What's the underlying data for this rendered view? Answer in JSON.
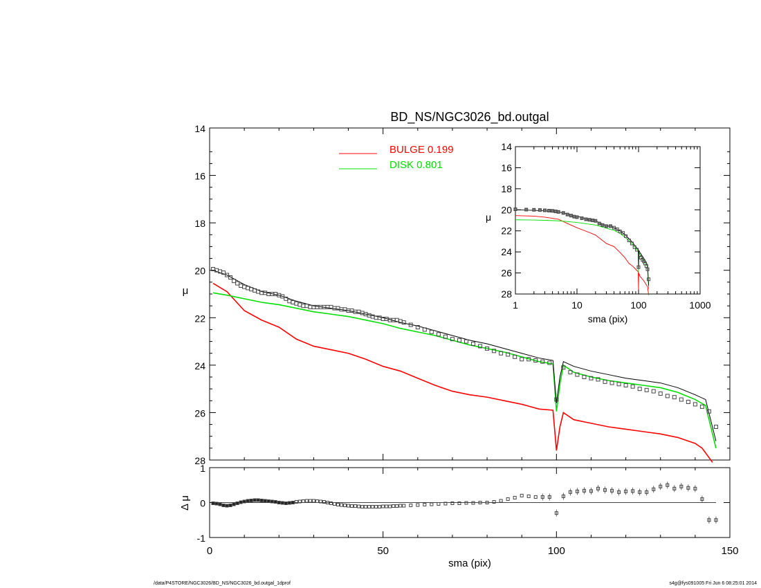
{
  "footer": {
    "left": "/data/P4STORE/NGC3026/BD_NS/NGC3026_bd.outgal_1dprof",
    "right": "s4g@fys091005  Fri Jun  6 08:25:01 2014"
  },
  "colors": {
    "bulge": "#ff0000",
    "disk": "#00e000",
    "total": "#000000",
    "data": "#555555"
  },
  "chart_data": [
    {
      "type": "line",
      "title": "BD_NS/NGC3026_bd.outgal",
      "xlabel": "",
      "ylabel": "μ",
      "xlim": [
        0,
        150
      ],
      "ylim": [
        28,
        14
      ],
      "yticks": [
        14,
        16,
        18,
        20,
        22,
        24,
        26,
        28
      ],
      "legend": [
        {
          "label": "BULGE  0.199",
          "color": "#ff0000"
        },
        {
          "label": "DISK  0.801",
          "color": "#00e000"
        }
      ],
      "legend_position": "top-center",
      "series": [
        {
          "name": "BULGE",
          "color": "#ff0000",
          "x": [
            1,
            5,
            10,
            15,
            20,
            25,
            30,
            35,
            40,
            45,
            50,
            55,
            60,
            65,
            70,
            75,
            80,
            85,
            90,
            95,
            99,
            100,
            101,
            102,
            105,
            110,
            115,
            120,
            125,
            130,
            135,
            140,
            142,
            145
          ],
          "y": [
            20.55,
            20.9,
            21.7,
            22.1,
            22.4,
            22.9,
            23.2,
            23.35,
            23.5,
            23.75,
            24.05,
            24.25,
            24.55,
            24.85,
            25.1,
            25.25,
            25.35,
            25.5,
            25.65,
            25.85,
            25.9,
            27.6,
            26.6,
            26.0,
            26.3,
            26.45,
            26.6,
            26.7,
            26.8,
            26.9,
            27.05,
            27.3,
            27.5,
            28.1
          ]
        },
        {
          "name": "DISK",
          "color": "#00e000",
          "x": [
            1,
            5,
            10,
            15,
            20,
            25,
            30,
            35,
            40,
            45,
            50,
            55,
            60,
            65,
            70,
            75,
            80,
            85,
            90,
            95,
            99,
            100,
            101,
            102,
            105,
            110,
            115,
            120,
            125,
            130,
            135,
            140,
            143,
            146
          ],
          "y": [
            20.95,
            21.05,
            21.2,
            21.35,
            21.45,
            21.6,
            21.75,
            21.85,
            21.95,
            22.1,
            22.25,
            22.45,
            22.6,
            22.75,
            22.95,
            23.15,
            23.3,
            23.45,
            23.65,
            23.85,
            23.95,
            25.95,
            24.8,
            24.0,
            24.3,
            24.5,
            24.65,
            24.75,
            24.85,
            24.95,
            25.15,
            25.45,
            25.7,
            27.5
          ]
        },
        {
          "name": "",
          "color": "#000000",
          "x": [
            1,
            5,
            10,
            15,
            20,
            25,
            30,
            35,
            40,
            45,
            50,
            55,
            60,
            65,
            70,
            75,
            80,
            85,
            90,
            95,
            99,
            100,
            101,
            102,
            105,
            110,
            115,
            120,
            125,
            130,
            135,
            140,
            143,
            146
          ],
          "y": [
            20.0,
            20.2,
            20.6,
            20.9,
            21.05,
            21.3,
            21.5,
            21.6,
            21.7,
            21.85,
            22.0,
            22.2,
            22.35,
            22.55,
            22.75,
            22.95,
            23.1,
            23.3,
            23.5,
            23.7,
            23.8,
            25.6,
            24.5,
            23.85,
            24.05,
            24.25,
            24.4,
            24.55,
            24.65,
            24.75,
            24.95,
            25.25,
            25.45,
            27.2
          ]
        }
      ],
      "data_points": {
        "x": [
          1,
          2,
          3,
          4,
          5,
          6,
          7,
          8,
          9,
          10,
          11,
          12,
          13,
          14,
          15,
          16,
          17,
          18,
          19,
          20,
          21,
          22,
          23,
          24,
          25,
          26,
          27,
          28,
          29,
          30,
          31,
          32,
          33,
          34,
          35,
          36,
          37,
          38,
          39,
          40,
          41,
          42,
          43,
          44,
          45,
          46,
          47,
          48,
          49,
          50,
          51,
          52,
          53,
          54,
          55,
          56,
          58,
          60,
          62,
          64,
          66,
          68,
          70,
          72,
          74,
          76,
          78,
          80,
          82,
          84,
          86,
          88,
          90,
          92,
          94,
          96,
          98,
          100,
          102,
          104,
          106,
          108,
          110,
          112,
          114,
          116,
          118,
          120,
          122,
          124,
          126,
          128,
          130,
          132,
          134,
          136,
          138,
          140,
          142,
          144,
          146
        ],
        "y": [
          19.95,
          20.0,
          20.05,
          20.1,
          20.2,
          20.3,
          20.45,
          20.55,
          20.65,
          20.7,
          20.75,
          20.8,
          20.85,
          20.9,
          20.95,
          20.95,
          21.0,
          21.0,
          21.0,
          21.05,
          21.1,
          21.2,
          21.3,
          21.35,
          21.4,
          21.45,
          21.5,
          21.5,
          21.55,
          21.55,
          21.55,
          21.55,
          21.55,
          21.55,
          21.55,
          21.6,
          21.6,
          21.65,
          21.65,
          21.7,
          21.7,
          21.75,
          21.75,
          21.8,
          21.85,
          21.9,
          21.95,
          22.0,
          22.0,
          22.05,
          22.05,
          22.1,
          22.1,
          22.1,
          22.15,
          22.2,
          22.3,
          22.4,
          22.5,
          22.6,
          22.7,
          22.8,
          22.9,
          22.95,
          23.0,
          23.1,
          23.2,
          23.3,
          23.4,
          23.5,
          23.55,
          23.65,
          23.75,
          23.75,
          23.8,
          23.85,
          23.9,
          25.45,
          24.1,
          24.3,
          24.4,
          24.5,
          24.55,
          24.6,
          24.7,
          24.75,
          24.8,
          24.85,
          24.9,
          25.0,
          25.05,
          25.1,
          25.2,
          25.3,
          25.35,
          25.45,
          25.55,
          25.65,
          25.75,
          25.95,
          26.6
        ]
      }
    },
    {
      "type": "scatter",
      "title": "",
      "xlabel": "sma (pix)",
      "ylabel": "Δ μ",
      "xlim": [
        0,
        150
      ],
      "ylim": [
        -1,
        1
      ],
      "xticks": [
        0,
        50,
        100,
        150
      ],
      "yticks": [
        -1,
        0,
        1
      ],
      "zero_line": true,
      "data_points": {
        "x": [
          1,
          2,
          3,
          4,
          5,
          6,
          7,
          8,
          9,
          10,
          11,
          12,
          13,
          14,
          15,
          16,
          17,
          18,
          19,
          20,
          21,
          22,
          23,
          24,
          25,
          26,
          27,
          28,
          29,
          30,
          31,
          32,
          33,
          34,
          35,
          36,
          37,
          38,
          39,
          40,
          41,
          42,
          43,
          44,
          45,
          46,
          47,
          48,
          49,
          50,
          51,
          52,
          53,
          54,
          55,
          56,
          58,
          60,
          62,
          64,
          66,
          68,
          70,
          72,
          74,
          76,
          78,
          80,
          82,
          84,
          86,
          88,
          90,
          92,
          94,
          96,
          98,
          100,
          102,
          104,
          106,
          108,
          110,
          112,
          114,
          116,
          118,
          120,
          122,
          124,
          126,
          128,
          130,
          132,
          134,
          136,
          138,
          140,
          142,
          144,
          146
        ],
        "y": [
          -0.02,
          -0.03,
          -0.05,
          -0.08,
          -0.09,
          -0.08,
          -0.05,
          -0.02,
          0.01,
          0.03,
          0.05,
          0.06,
          0.07,
          0.07,
          0.06,
          0.05,
          0.04,
          0.03,
          0.02,
          0.0,
          -0.01,
          -0.02,
          -0.01,
          0.0,
          0.02,
          0.03,
          0.04,
          0.05,
          0.05,
          0.05,
          0.04,
          0.03,
          0.02,
          0.0,
          -0.02,
          -0.04,
          -0.06,
          -0.07,
          -0.08,
          -0.09,
          -0.1,
          -0.1,
          -0.11,
          -0.12,
          -0.12,
          -0.12,
          -0.12,
          -0.12,
          -0.12,
          -0.11,
          -0.11,
          -0.11,
          -0.1,
          -0.1,
          -0.09,
          -0.09,
          -0.08,
          -0.07,
          -0.06,
          -0.05,
          -0.04,
          -0.03,
          -0.02,
          -0.02,
          -0.01,
          -0.01,
          0.0,
          0.0,
          0.02,
          0.05,
          0.1,
          0.14,
          0.2,
          0.18,
          0.16,
          0.16,
          0.16,
          -0.3,
          0.18,
          0.3,
          0.32,
          0.34,
          0.33,
          0.4,
          0.36,
          0.34,
          0.3,
          0.32,
          0.33,
          0.3,
          0.3,
          0.38,
          0.46,
          0.5,
          0.4,
          0.46,
          0.42,
          0.4,
          0.1,
          -0.5,
          -0.5
        ]
      }
    },
    {
      "type": "line",
      "title": "",
      "xlabel": "sma (pix)",
      "ylabel": "μ",
      "xscale": "log",
      "xlim": [
        1,
        1000
      ],
      "ylim": [
        28,
        14
      ],
      "xtick_labels": [
        "1",
        "10",
        "100",
        "1000"
      ],
      "yticks": [
        14,
        16,
        18,
        20,
        22,
        24,
        26,
        28
      ],
      "position": "inset top-right",
      "series": [
        {
          "name": "BULGE",
          "color": "#ff0000",
          "x": [
            1,
            2,
            3,
            5,
            7,
            10,
            15,
            20,
            30,
            40,
            50,
            60,
            70,
            80,
            90,
            99,
            100,
            101,
            105,
            120,
            140,
            146
          ],
          "y": [
            20.55,
            20.6,
            20.7,
            20.9,
            21.3,
            21.7,
            22.1,
            22.4,
            23.2,
            23.5,
            24.05,
            24.55,
            25.1,
            25.35,
            25.65,
            25.9,
            27.6,
            26.0,
            26.3,
            26.7,
            27.3,
            28.1
          ]
        },
        {
          "name": "DISK",
          "color": "#00e000",
          "x": [
            1,
            2,
            3,
            5,
            7,
            10,
            15,
            20,
            30,
            40,
            50,
            60,
            70,
            80,
            90,
            99,
            100,
            101,
            105,
            120,
            140,
            146
          ],
          "y": [
            20.95,
            20.97,
            21.0,
            21.05,
            21.12,
            21.2,
            21.35,
            21.45,
            21.75,
            21.95,
            22.25,
            22.6,
            22.95,
            23.3,
            23.65,
            23.95,
            25.95,
            24.0,
            24.3,
            24.75,
            25.45,
            27.5
          ]
        },
        {
          "name": "",
          "color": "#000000",
          "x": [
            1,
            2,
            3,
            5,
            7,
            10,
            15,
            20,
            30,
            40,
            50,
            60,
            70,
            80,
            90,
            99,
            100,
            101,
            105,
            120,
            140,
            146
          ],
          "y": [
            20.0,
            20.05,
            20.1,
            20.2,
            20.4,
            20.6,
            20.9,
            21.05,
            21.5,
            21.7,
            22.0,
            22.35,
            22.75,
            23.1,
            23.5,
            23.8,
            25.6,
            23.85,
            24.05,
            24.55,
            25.25,
            27.2
          ]
        }
      ],
      "data_points": {
        "x": [
          1,
          1.5,
          2,
          2.5,
          3,
          3.5,
          4,
          4.5,
          5,
          6,
          7,
          8,
          9,
          10,
          12,
          14,
          16,
          18,
          20,
          23,
          26,
          30,
          35,
          40,
          45,
          50,
          56,
          62,
          70,
          78,
          86,
          94,
          100,
          104,
          110,
          116,
          122,
          128,
          134,
          140,
          146
        ],
        "y": [
          19.95,
          19.98,
          20.0,
          20.02,
          20.05,
          20.08,
          20.1,
          20.15,
          20.2,
          20.3,
          20.45,
          20.55,
          20.65,
          20.7,
          20.8,
          20.9,
          20.95,
          21.0,
          21.05,
          21.3,
          21.45,
          21.55,
          21.55,
          21.7,
          21.85,
          22.05,
          22.2,
          22.5,
          22.9,
          23.2,
          23.55,
          23.8,
          25.45,
          24.3,
          24.55,
          24.75,
          24.9,
          25.1,
          25.35,
          25.65,
          26.6
        ]
      }
    }
  ]
}
